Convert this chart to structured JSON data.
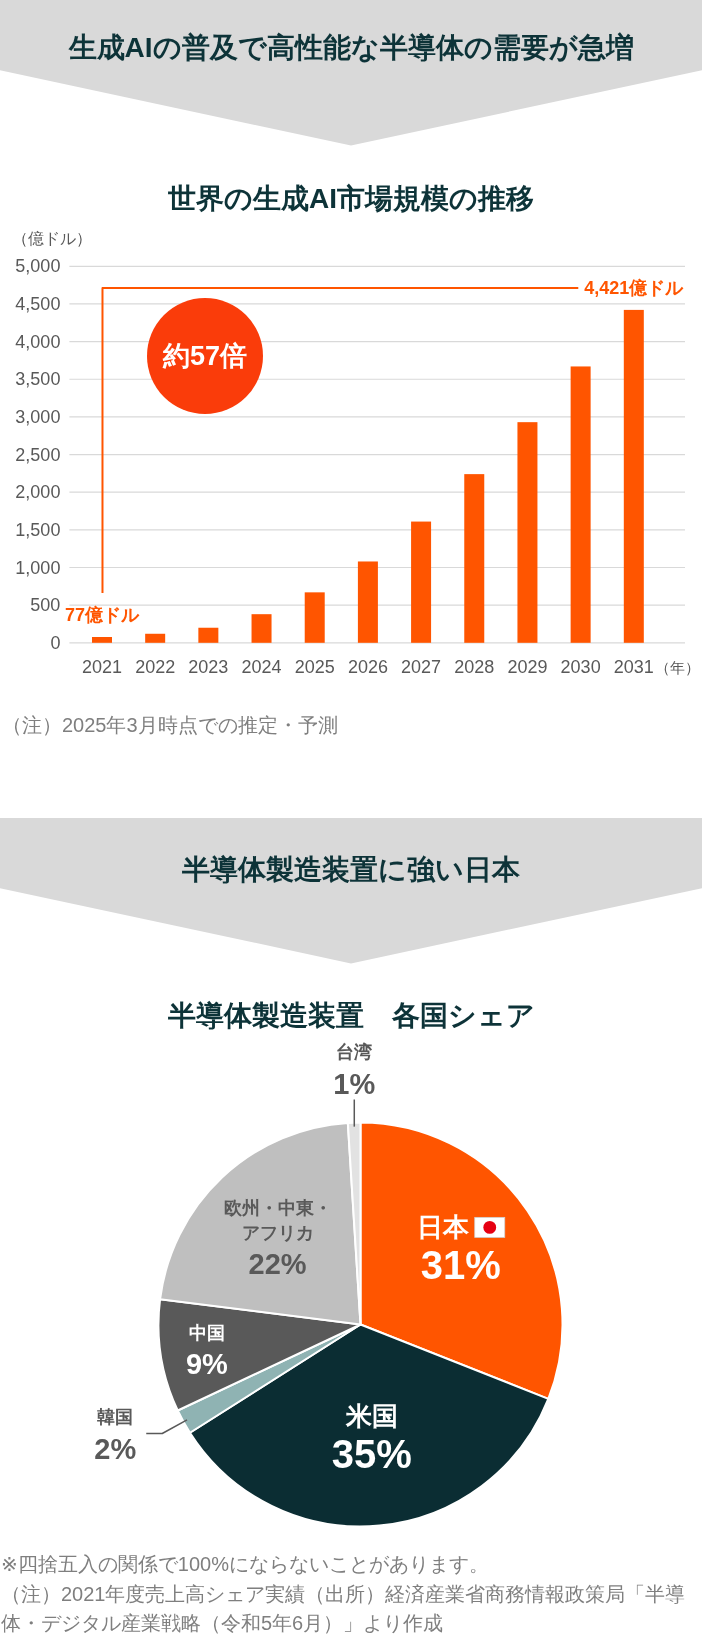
{
  "chart_data": [
    {
      "type": "bar",
      "title": "生成AIの普及で高性能な半導体の需要が急増",
      "subtitle": "世界の生成AI市場規模の推移",
      "ylabel": "（億ドル）",
      "xlabel": "（年）",
      "categories": [
        "2021",
        "2022",
        "2023",
        "2024",
        "2025",
        "2026",
        "2027",
        "2028",
        "2029",
        "2030",
        "2031"
      ],
      "values": [
        77,
        120,
        200,
        380,
        670,
        1080,
        1610,
        2240,
        2930,
        3670,
        4421
      ],
      "color": "#ff5500",
      "ylim": [
        0,
        5000
      ],
      "yticks": [
        0,
        500,
        {
          "value": 1000,
          "label": "1,000"
        },
        {
          "value": 1500,
          "label": "1,500"
        },
        {
          "value": 2000,
          "label": "2,000"
        },
        {
          "value": 2500,
          "label": "2,500"
        },
        {
          "value": 3000,
          "label": "3,000"
        },
        {
          "value": 3500,
          "label": "3,500"
        },
        {
          "value": 4000,
          "label": "4,000"
        },
        {
          "value": 4500,
          "label": "4,500"
        },
        {
          "value": 5000,
          "label": "5,000"
        }
      ],
      "grid": "y",
      "annotations": [
        {
          "text": "77億ドル",
          "x": "2021",
          "y": 77
        },
        {
          "text": "4,421億ドル",
          "x": "2031",
          "y": 4421
        },
        "約57倍",
        "（注）2025年3月時点での推定・予測"
      ]
    },
    {
      "type": "pie",
      "title": "半導体製造装置に強い日本",
      "subtitle": "半導体製造装置　各国シェア",
      "categories": [
        "日本",
        "米国",
        "韓国",
        "中国",
        "欧州・中東・アフリカ",
        "台湾"
      ],
      "values": [
        31,
        35,
        2,
        9,
        22,
        1
      ],
      "colors": [
        "#ff5500",
        "#0b2d33",
        "#8fb3b3",
        "#595959",
        "#bfbfbf",
        "#e2e2e2"
      ],
      "value_labels": [
        "31%",
        "35%",
        "2%",
        "9%",
        "22%",
        "1%"
      ],
      "annotations": [
        "※四捨五入の関係で100%にならないことがあります。",
        "（注）2021年度売上高シェア実績（出所）経済産業省商務情報政策局「半導体・デジタル産業戦略（令和5年6月）」より作成"
      ]
    }
  ]
}
